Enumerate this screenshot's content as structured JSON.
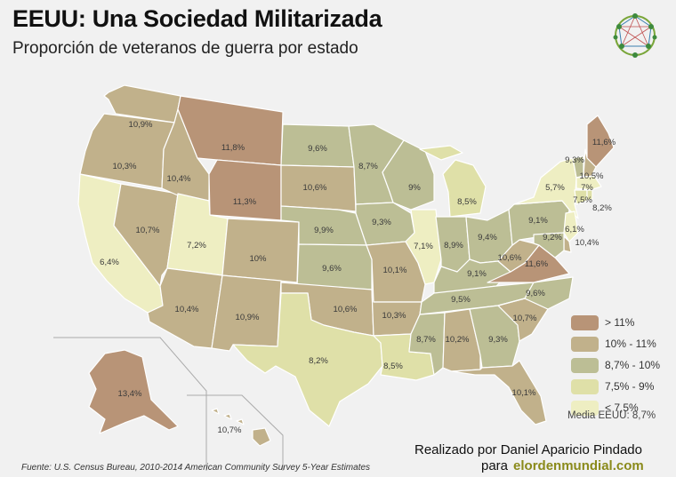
{
  "header": {
    "title": "EEUU: Una Sociedad Militarizada",
    "subtitle": "Proporción de veteranos de guerra por estado"
  },
  "colors": {
    "gt11": "#b89477",
    "r10_11": "#c1b18b",
    "r87_10": "#bcbe95",
    "r75_9": "#dfe0a8",
    "lt75": "#eeeec2",
    "border": "#ffffff",
    "inset_line": "#aaaaaa",
    "site": "#8a8a1a"
  },
  "legend": {
    "items": [
      {
        "label": "> 11%",
        "color": "#b89477"
      },
      {
        "label": "10% - 11%",
        "color": "#c1b18b"
      },
      {
        "label": "8,7% - 10%",
        "color": "#bcbe95"
      },
      {
        "label": "7,5% - 9%",
        "color": "#dfe0a8"
      },
      {
        "label": "< 7,5%",
        "color": "#eeeec2"
      }
    ],
    "mean": "Media EEUU: 8,7%"
  },
  "states": {
    "WA": "10,9%",
    "OR": "10,3%",
    "CA": "6,4%",
    "NV": "10,7%",
    "ID": "10,4%",
    "MT": "11,8%",
    "WY": "11,3%",
    "UT": "7,2%",
    "AZ": "10,4%",
    "CO": "10%",
    "NM": "10,9%",
    "ND": "9,6%",
    "SD": "10,6%",
    "NE": "9,9%",
    "KS": "9,6%",
    "OK": "10,6%",
    "TX": "8,2%",
    "MN": "8,7%",
    "IA": "9,3%",
    "MO": "10,1%",
    "AR": "10,3%",
    "LA": "8,5%",
    "WI": "9%",
    "IL": "7,1%",
    "MI": "8,5%",
    "IN": "8,9%",
    "OH": "9,4%",
    "KY": "9,1%",
    "TN": "9,5%",
    "MS": "8,7%",
    "AL": "10,2%",
    "GA": "9,3%",
    "FL": "10,1%",
    "SC": "10,7%",
    "NC": "9,6%",
    "VA": "11,6%",
    "WV": "10,6%",
    "PA": "9,1%",
    "NY": "5,7%",
    "ME": "11,6%",
    "NH": "10,5%",
    "VT": "9,3%",
    "MA": "7%",
    "CT": "7,5%",
    "RI": "8,2%",
    "NJ": "6,1%",
    "DE": "10,4%",
    "MD": "9,2%",
    "AK": "13,4%",
    "HI": "10,7%"
  },
  "footer": {
    "credit_line1": "Realizado por Daniel Aparicio Pindado",
    "credit_para": "para",
    "credit_site": "elordenmundial.com",
    "source": "Fuente: U.S. Census Bureau, 2010-2014 American Community Survey 5-Year Estimates"
  }
}
